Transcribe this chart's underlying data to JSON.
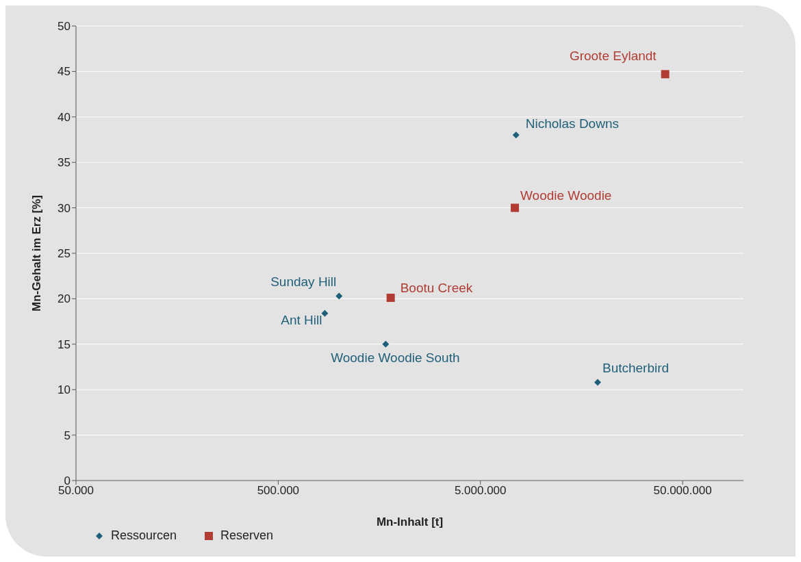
{
  "chart_data": {
    "type": "scatter",
    "xlabel": "Mn-Inhalt [t]",
    "ylabel": "Mn-Gehalt im Erz [%]",
    "log": "x",
    "xlim": [
      50000,
      100000000
    ],
    "xticks": [
      {
        "value": 50000,
        "label": "50.000"
      },
      {
        "value": 500000,
        "label": "500.000"
      },
      {
        "value": 5000000,
        "label": "5.000.000"
      },
      {
        "value": 50000000,
        "label": "50.000.000"
      }
    ],
    "ylim": [
      0,
      50
    ],
    "yticks": [
      0,
      5,
      10,
      15,
      20,
      25,
      30,
      35,
      40,
      45,
      50
    ],
    "grid": "y",
    "legend": "bottom left",
    "series": [
      {
        "name": "Ressourcen",
        "color": "#1f5f78",
        "marker": "diamond",
        "x": [
          1000000,
          850000,
          1700000,
          7500000,
          19000000
        ],
        "values": [
          20.3,
          18.4,
          15,
          38,
          10.8
        ]
      },
      {
        "name": "Reserven",
        "color": "#b03c34",
        "marker": "square",
        "x": [
          41000000,
          7400000,
          1800000
        ],
        "values": [
          44.7,
          30,
          20.1
        ]
      }
    ],
    "annotations": [
      {
        "text": "Sunday Hill",
        "x": 1000000,
        "y": 20.3
      },
      {
        "text": "Ant Hill",
        "x": 850000,
        "y": 18.4
      },
      {
        "text": "Woodie Woodie South",
        "x": 1700000,
        "y": 15
      },
      {
        "text": "Nicholas Downs",
        "x": 7500000,
        "y": 38
      },
      {
        "text": "Butcherbird",
        "x": 19000000,
        "y": 10.8
      },
      {
        "text": "Groote Eylandt",
        "x": 41000000,
        "y": 44.7
      },
      {
        "text": "Woodie Woodie",
        "x": 7400000,
        "y": 30
      },
      {
        "text": "Bootu Creek",
        "x": 1800000,
        "y": 20.1
      }
    ]
  }
}
